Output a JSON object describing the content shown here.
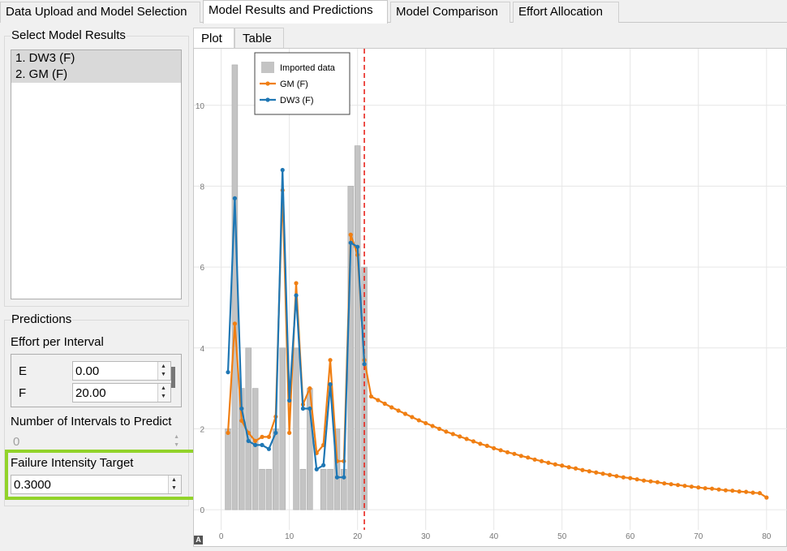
{
  "tabs": [
    {
      "label": "Data Upload and Model Selection"
    },
    {
      "label": "Model Results and Predictions"
    },
    {
      "label": "Model Comparison"
    },
    {
      "label": "Effort Allocation"
    }
  ],
  "active_tab_index": 1,
  "model_results": {
    "title": "Select Model Results",
    "items": [
      {
        "label": "1. DW3 (F)",
        "selected": true
      },
      {
        "label": "2. GM (F)",
        "selected": true
      }
    ]
  },
  "predictions": {
    "title": "Predictions",
    "effort_title": "Effort per Interval",
    "effort_rows": [
      {
        "label": "E",
        "value": "0.00"
      },
      {
        "label": "F",
        "value": "20.00"
      }
    ],
    "intervals_label": "Number of Intervals to Predict",
    "intervals_value": "0",
    "fit_label": "Failure Intensity Target",
    "fit_value": "0.3000"
  },
  "plot_tabs": [
    {
      "label": "Plot"
    },
    {
      "label": "Table"
    }
  ],
  "autoscale_label": "A",
  "colors": {
    "gm": "#f07f13",
    "dw3": "#1f77b4",
    "bars": "#c4c4c4",
    "vline": "#e8261e",
    "highlight": "#92d32a"
  },
  "chart_data": {
    "type": "bar",
    "title": "",
    "xlabel": "",
    "ylabel": "",
    "xlim": [
      -4,
      83
    ],
    "ylim": [
      -0.5,
      11.4
    ],
    "xticks": [
      0,
      10,
      20,
      30,
      40,
      50,
      60,
      70,
      80
    ],
    "yticks": [
      0,
      2,
      4,
      6,
      8,
      10
    ],
    "vline_x": 21,
    "legend": [
      "Imported data",
      "GM (F)",
      "DW3 (F)"
    ],
    "legend_position": "top-left",
    "bars": {
      "name": "Imported data",
      "x": [
        1,
        2,
        3,
        4,
        5,
        6,
        7,
        8,
        9,
        10,
        11,
        12,
        13,
        14,
        15,
        16,
        17,
        18,
        19,
        20,
        21
      ],
      "values": [
        2,
        11,
        3,
        4,
        3,
        1,
        1,
        2,
        4,
        0,
        4,
        1,
        3,
        0,
        1,
        1,
        2,
        1,
        8,
        9,
        6
      ]
    },
    "series": [
      {
        "name": "GM (F)",
        "x": [
          1,
          2,
          3,
          4,
          5,
          6,
          7,
          8,
          9,
          10,
          11,
          12,
          13,
          14,
          15,
          16,
          17,
          18,
          19,
          20,
          21,
          22,
          23,
          24,
          25,
          26,
          27,
          28,
          29,
          30,
          31,
          32,
          33,
          34,
          35,
          36,
          37,
          38,
          39,
          40,
          41,
          42,
          43,
          44,
          45,
          46,
          47,
          48,
          49,
          50,
          51,
          52,
          53,
          54,
          55,
          56,
          57,
          58,
          59,
          60,
          61,
          62,
          63,
          64,
          65,
          66,
          67,
          68,
          69,
          70,
          71,
          72,
          73,
          74,
          75,
          76,
          77,
          78,
          79,
          80
        ],
        "values": [
          1.9,
          4.6,
          2.2,
          1.9,
          1.7,
          1.8,
          1.8,
          2.3,
          7.9,
          1.9,
          5.6,
          2.6,
          3.0,
          1.4,
          1.6,
          3.7,
          1.2,
          1.2,
          6.8,
          6.3,
          3.7,
          2.8,
          2.71,
          2.62,
          2.53,
          2.45,
          2.37,
          2.29,
          2.21,
          2.14,
          2.07,
          2.0,
          1.93,
          1.87,
          1.81,
          1.75,
          1.69,
          1.63,
          1.58,
          1.52,
          1.47,
          1.42,
          1.38,
          1.33,
          1.29,
          1.24,
          1.2,
          1.16,
          1.12,
          1.09,
          1.05,
          1.02,
          0.98,
          0.95,
          0.92,
          0.89,
          0.86,
          0.83,
          0.8,
          0.78,
          0.75,
          0.72,
          0.7,
          0.68,
          0.65,
          0.63,
          0.61,
          0.59,
          0.57,
          0.55,
          0.53,
          0.52,
          0.5,
          0.48,
          0.47,
          0.45,
          0.44,
          0.42,
          0.41,
          0.3
        ]
      },
      {
        "name": "DW3 (F)",
        "x": [
          1,
          2,
          3,
          4,
          5,
          6,
          7,
          8,
          9,
          10,
          11,
          12,
          13,
          14,
          15,
          16,
          17,
          18,
          19,
          20,
          21
        ],
        "values": [
          3.4,
          7.7,
          2.5,
          1.7,
          1.6,
          1.6,
          1.5,
          1.9,
          8.4,
          2.7,
          5.3,
          2.5,
          2.5,
          1.0,
          1.1,
          3.1,
          0.8,
          0.8,
          6.6,
          6.5,
          3.6
        ]
      }
    ]
  }
}
